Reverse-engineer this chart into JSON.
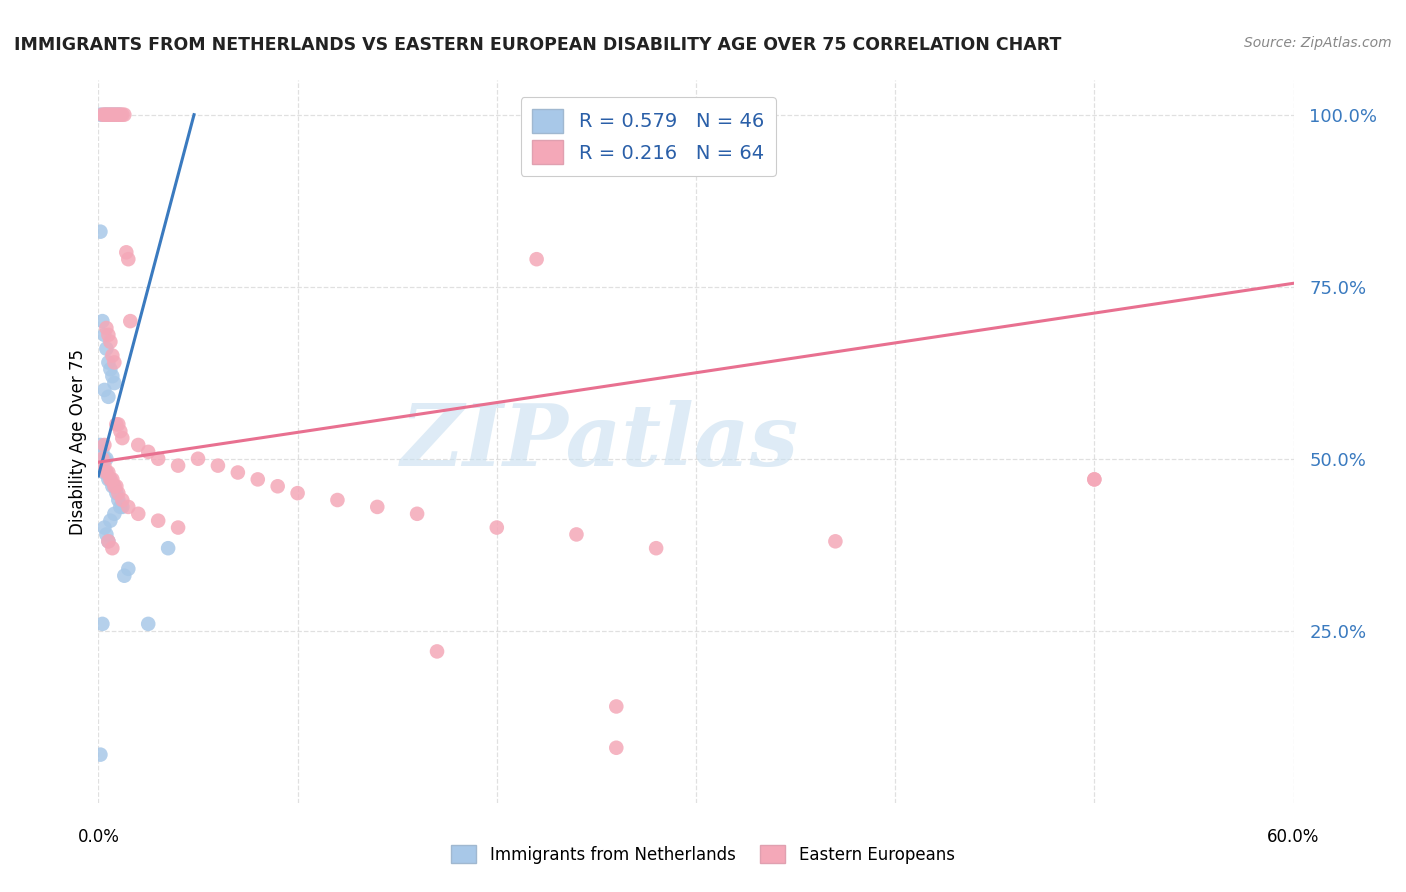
{
  "title": "IMMIGRANTS FROM NETHERLANDS VS EASTERN EUROPEAN DISABILITY AGE OVER 75 CORRELATION CHART",
  "source": "Source: ZipAtlas.com",
  "ylabel": "Disability Age Over 75",
  "legend_blue_label": "Immigrants from Netherlands",
  "legend_pink_label": "Eastern Europeans",
  "R_blue": 0.579,
  "N_blue": 46,
  "R_pink": 0.216,
  "N_pink": 64,
  "blue_color": "#a8c8e8",
  "pink_color": "#f4a8b8",
  "blue_line_color": "#3a7abf",
  "pink_line_color": "#e87090",
  "watermark_color": "#c8dff0",
  "xmin": 0.0,
  "xmax": 0.6,
  "ymin": 0.0,
  "ymax": 1.05,
  "blue_x": [
    0.001,
    0.003,
    0.004,
    0.005,
    0.006,
    0.007,
    0.008,
    0.009,
    0.01,
    0.011,
    0.001,
    0.002,
    0.003,
    0.004,
    0.005,
    0.006,
    0.007,
    0.008,
    0.003,
    0.005,
    0.001,
    0.002,
    0.003,
    0.004,
    0.002,
    0.003,
    0.004,
    0.005,
    0.006,
    0.007,
    0.008,
    0.009,
    0.01,
    0.011,
    0.012,
    0.008,
    0.006,
    0.003,
    0.004,
    0.005,
    0.015,
    0.013,
    0.002,
    0.001,
    0.035,
    0.025
  ],
  "blue_y": [
    1.0,
    1.0,
    1.0,
    1.0,
    1.0,
    1.0,
    1.0,
    1.0,
    1.0,
    1.0,
    0.83,
    0.7,
    0.68,
    0.66,
    0.64,
    0.63,
    0.62,
    0.61,
    0.6,
    0.59,
    0.52,
    0.51,
    0.5,
    0.5,
    0.49,
    0.48,
    0.48,
    0.47,
    0.47,
    0.46,
    0.46,
    0.45,
    0.44,
    0.43,
    0.43,
    0.42,
    0.41,
    0.4,
    0.39,
    0.38,
    0.34,
    0.33,
    0.26,
    0.07,
    0.37,
    0.26
  ],
  "pink_x": [
    0.002,
    0.003,
    0.004,
    0.005,
    0.006,
    0.007,
    0.008,
    0.009,
    0.01,
    0.011,
    0.012,
    0.013,
    0.014,
    0.015,
    0.016,
    0.004,
    0.005,
    0.006,
    0.007,
    0.008,
    0.009,
    0.01,
    0.011,
    0.012,
    0.02,
    0.025,
    0.03,
    0.04,
    0.05,
    0.06,
    0.07,
    0.08,
    0.09,
    0.1,
    0.12,
    0.14,
    0.16,
    0.2,
    0.24,
    0.28,
    0.002,
    0.003,
    0.004,
    0.005,
    0.006,
    0.007,
    0.008,
    0.009,
    0.01,
    0.012,
    0.015,
    0.02,
    0.03,
    0.04,
    0.22,
    0.17,
    0.26,
    0.26,
    0.37,
    0.5,
    0.003,
    0.005,
    0.007,
    0.5
  ],
  "pink_y": [
    1.0,
    1.0,
    1.0,
    1.0,
    1.0,
    1.0,
    1.0,
    1.0,
    1.0,
    1.0,
    1.0,
    1.0,
    0.8,
    0.79,
    0.7,
    0.69,
    0.68,
    0.67,
    0.65,
    0.64,
    0.55,
    0.55,
    0.54,
    0.53,
    0.52,
    0.51,
    0.5,
    0.49,
    0.5,
    0.49,
    0.48,
    0.47,
    0.46,
    0.45,
    0.44,
    0.43,
    0.42,
    0.4,
    0.39,
    0.37,
    0.5,
    0.49,
    0.48,
    0.48,
    0.47,
    0.47,
    0.46,
    0.46,
    0.45,
    0.44,
    0.43,
    0.42,
    0.41,
    0.4,
    0.79,
    0.22,
    0.14,
    0.08,
    0.38,
    0.47,
    0.52,
    0.38,
    0.37,
    0.47
  ],
  "blue_line_x0": 0.0,
  "blue_line_y0": 0.475,
  "blue_line_x1": 0.048,
  "blue_line_y1": 1.0,
  "pink_line_x0": 0.0,
  "pink_line_y0": 0.495,
  "pink_line_x1": 0.6,
  "pink_line_y1": 0.755
}
